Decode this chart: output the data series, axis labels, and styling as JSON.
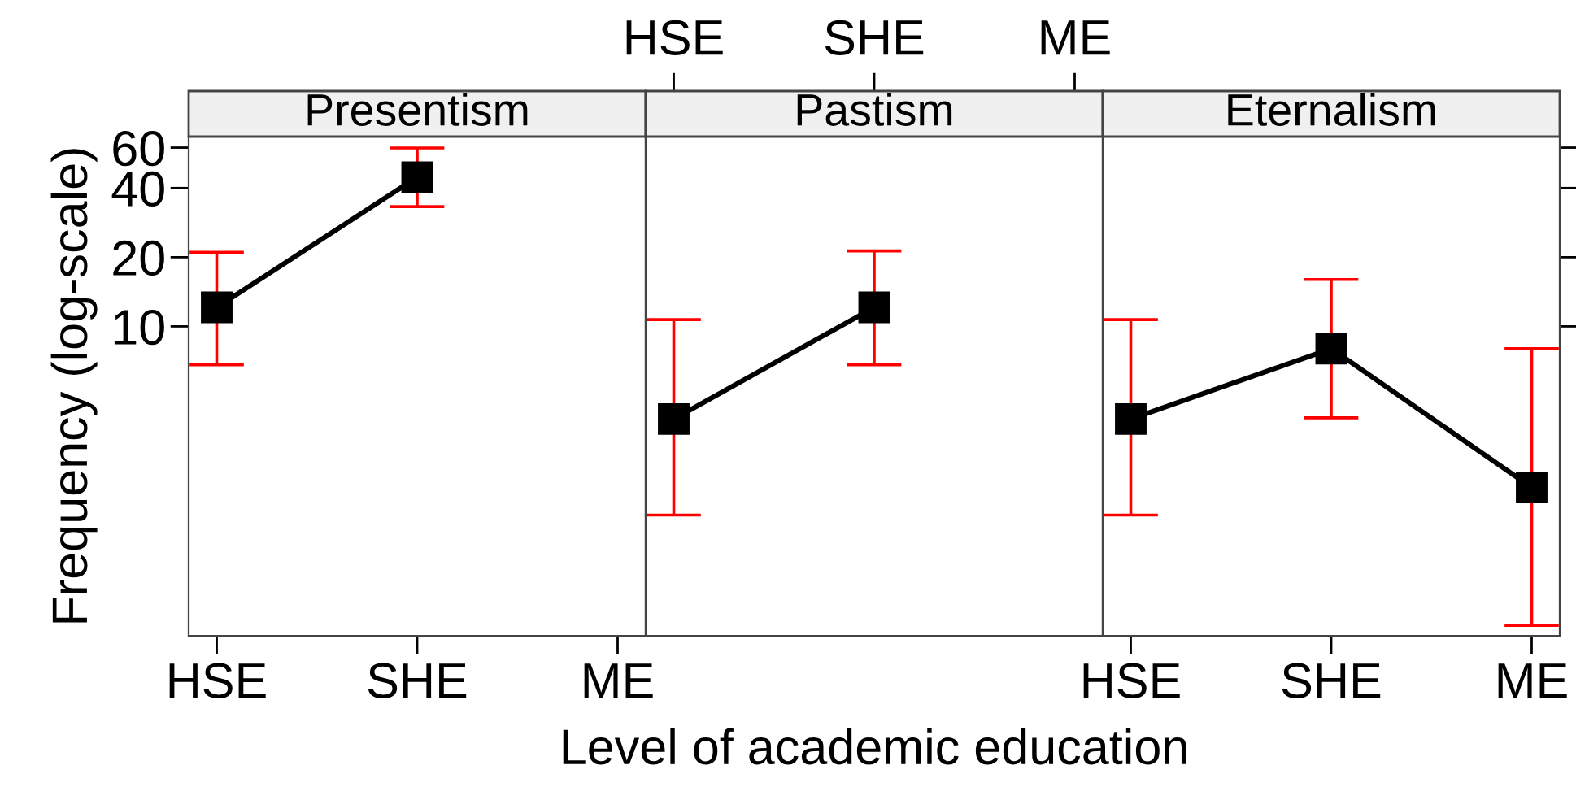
{
  "chart_data": [
    {
      "type": "line",
      "title": "Presentism",
      "ylabel": "Frequency (log-scale)",
      "categories": [
        "HSE",
        "SHE",
        "ME"
      ],
      "log": "y",
      "ylim": [
        0.45,
        67
      ],
      "yticks": [
        10,
        20,
        40,
        60
      ],
      "marker": "square",
      "line_style": "solid",
      "color": "#000000",
      "values": [
        12.1,
        44.6,
        null
      ],
      "errors": [
        [
          6.8,
          21
        ],
        [
          33.2,
          59.8
        ],
        null
      ]
    },
    {
      "type": "line",
      "title": "Pastism",
      "xlabel": "Level of academic education",
      "categories": [
        "HSE",
        "SHE",
        "ME"
      ],
      "log": "y",
      "ylim": [
        0.45,
        67
      ],
      "yticks": [
        {
          "value": 10,
          "label": null
        },
        {
          "value": 20,
          "label": null
        },
        {
          "value": 40,
          "label": null
        },
        {
          "value": 60,
          "label": null
        }
      ],
      "tick_labels": "x",
      "marker": "square",
      "line_style": "solid",
      "color": "#000000",
      "values": [
        3.95,
        12.1,
        null
      ],
      "errors": [
        [
          1.51,
          10.7
        ],
        [
          6.8,
          21.3
        ],
        null
      ]
    },
    {
      "type": "line",
      "title": "Eternalism",
      "categories": [
        "HSE",
        "SHE",
        "ME"
      ],
      "log": "y",
      "ylim": [
        0.45,
        67
      ],
      "yticks": [
        {
          "value": 10,
          "label": null
        },
        {
          "value": 20,
          "label": null
        },
        {
          "value": 40,
          "label": null
        },
        {
          "value": 60,
          "label": null
        }
      ],
      "tick_labels": "x",
      "marker": "square",
      "line_style": "solid",
      "color": "#000000",
      "values": [
        3.95,
        8.0,
        1.99
      ],
      "errors": [
        [
          1.51,
          10.7
        ],
        [
          4.0,
          16.0
        ],
        [
          0.5,
          8.0
        ]
      ]
    }
  ]
}
